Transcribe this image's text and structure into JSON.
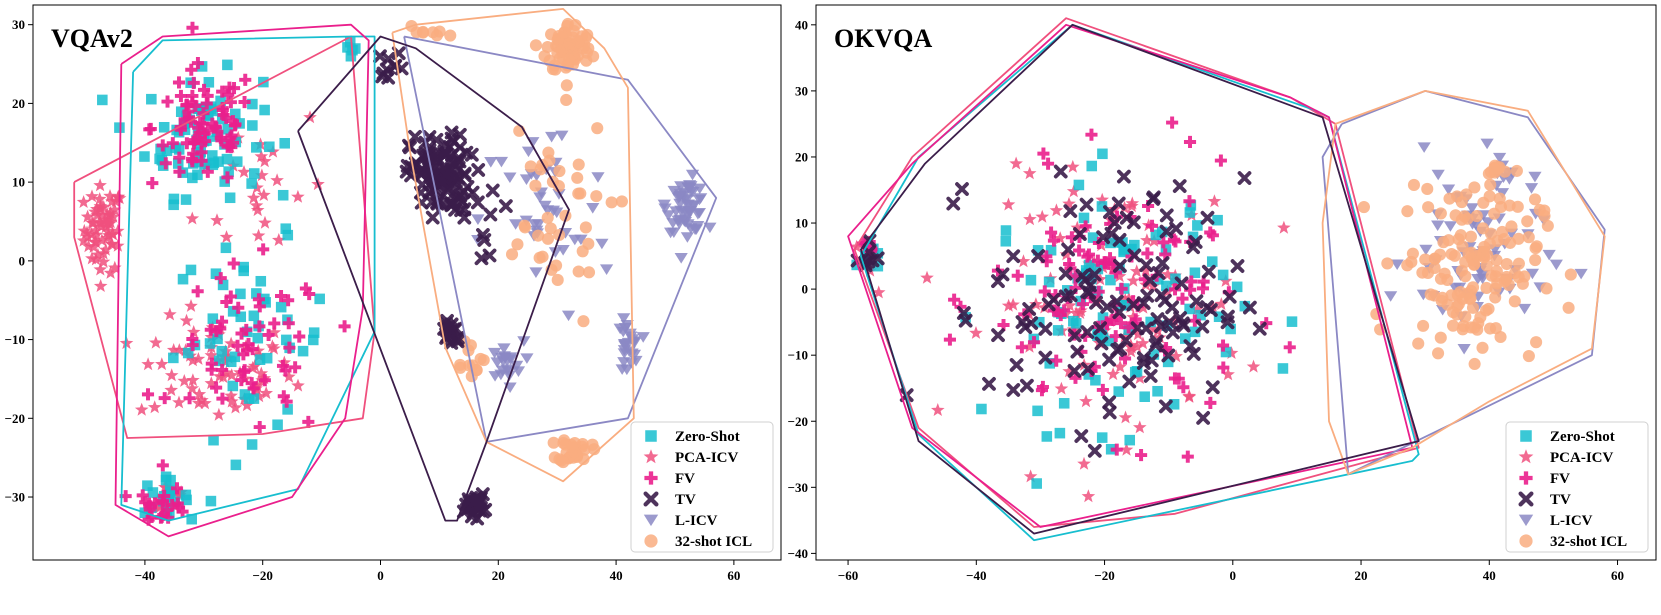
{
  "colors": {
    "zero_shot": "#17becf",
    "pca_icv": "#f0507e",
    "fv": "#ea1f8c",
    "tv": "#3b1d4a",
    "l_icv": "#8b88c4",
    "icl_32": "#f9ad80"
  },
  "legend_entries": [
    {
      "key": "zero_shot",
      "label": "Zero-Shot",
      "marker": "square"
    },
    {
      "key": "pca_icv",
      "label": "PCA-ICV",
      "marker": "star"
    },
    {
      "key": "fv",
      "label": "FV",
      "marker": "plus"
    },
    {
      "key": "tv",
      "label": "TV",
      "marker": "x"
    },
    {
      "key": "l_icv",
      "label": "L-ICV",
      "marker": "triangle-down"
    },
    {
      "key": "icl_32",
      "label": "32-shot ICL",
      "marker": "circle"
    }
  ],
  "chart_data": [
    {
      "type": "scatter",
      "title": "VQAv2",
      "xlabel": "",
      "ylabel": "",
      "xlim": [
        -59,
        68
      ],
      "ylim": [
        -38,
        32.5
      ],
      "xticks": [
        -40,
        -20,
        0,
        20,
        40,
        60
      ],
      "xtick_labels": [
        "−40",
        "−20",
        "0",
        "20",
        "40",
        "60"
      ],
      "yticks": [
        -30,
        -20,
        -10,
        0,
        10,
        20,
        30
      ],
      "ytick_labels": [
        "−30",
        "−20",
        "−10",
        "0",
        "10",
        "20",
        "30"
      ],
      "grid": false,
      "legend_position": "bottom-right",
      "hulls": {
        "zero_shot": [
          [
            -42,
            24
          ],
          [
            -37,
            28
          ],
          [
            -5,
            28.5
          ],
          [
            -1,
            28.5
          ],
          [
            -1,
            -9
          ],
          [
            -14,
            -29
          ],
          [
            -36,
            -33
          ],
          [
            -44,
            -31
          ],
          [
            -42,
            24
          ]
        ],
        "pca_icv": [
          [
            -52,
            10
          ],
          [
            -5,
            28.5
          ],
          [
            -1,
            -9
          ],
          [
            -3,
            -20
          ],
          [
            -20,
            -22
          ],
          [
            -43,
            -22.5
          ],
          [
            -52,
            3
          ],
          [
            -52,
            10
          ]
        ],
        "fv": [
          [
            -44,
            25
          ],
          [
            -37,
            28.5
          ],
          [
            -5,
            30
          ],
          [
            -2,
            28
          ],
          [
            -3,
            -6
          ],
          [
            -6,
            -20
          ],
          [
            -15,
            -30
          ],
          [
            -36,
            -35
          ],
          [
            -45,
            -31
          ],
          [
            -44,
            25
          ]
        ],
        "tv": [
          [
            -14,
            16.5
          ],
          [
            0,
            28.5
          ],
          [
            6,
            27
          ],
          [
            24,
            17
          ],
          [
            32,
            6.5
          ],
          [
            18,
            -23
          ],
          [
            13,
            -33
          ],
          [
            11,
            -33
          ],
          [
            -14,
            16.5
          ]
        ],
        "l_icv": [
          [
            4,
            28.5
          ],
          [
            42,
            23
          ],
          [
            54,
            11
          ],
          [
            57,
            8
          ],
          [
            42,
            -20
          ],
          [
            18,
            -23
          ],
          [
            4,
            28.5
          ]
        ],
        "icl_32": [
          [
            2,
            29
          ],
          [
            6,
            30
          ],
          [
            31,
            32
          ],
          [
            38,
            27
          ],
          [
            42,
            22
          ],
          [
            43,
            -20
          ],
          [
            31,
            -28
          ],
          [
            18,
            -23
          ],
          [
            11,
            -11
          ],
          [
            5,
            14
          ],
          [
            2,
            29
          ]
        ]
      },
      "clusters": {
        "zero_shot": [
          {
            "center": [
              -30,
              16
            ],
            "spread": [
              9,
              7
            ],
            "count": 80
          },
          {
            "center": [
              -22,
              -10
            ],
            "spread": [
              12,
              11
            ],
            "count": 50
          },
          {
            "center": [
              -37,
              -30
            ],
            "spread": [
              4,
              2
            ],
            "count": 18
          },
          {
            "center": [
              -5,
              26
            ],
            "spread": [
              2,
              2
            ],
            "count": 5
          }
        ],
        "pca_icv": [
          {
            "center": [
              -47,
              4
            ],
            "spread": [
              3,
              5
            ],
            "count": 65
          },
          {
            "center": [
              -28,
              -14
            ],
            "spread": [
              12,
              6
            ],
            "count": 70
          },
          {
            "center": [
              -36,
              -30
            ],
            "spread": [
              3,
              2
            ],
            "count": 15
          },
          {
            "center": [
              -20,
              10
            ],
            "spread": [
              10,
              10
            ],
            "count": 25
          }
        ],
        "fv": [
          {
            "center": [
              -30,
              17
            ],
            "spread": [
              8,
              7
            ],
            "count": 75
          },
          {
            "center": [
              -22,
              -12
            ],
            "spread": [
              12,
              10
            ],
            "count": 55
          },
          {
            "center": [
              -37,
              -31
            ],
            "spread": [
              4,
              2
            ],
            "count": 22
          }
        ],
        "tv": [
          {
            "center": [
              10,
              11
            ],
            "spread": [
              4.5,
              4.5
            ],
            "count": 110
          },
          {
            "center": [
              12,
              -9
            ],
            "spread": [
              1.5,
              1.6
            ],
            "count": 22
          },
          {
            "center": [
              16,
              -31
            ],
            "spread": [
              1.5,
              1.2
            ],
            "count": 30
          },
          {
            "center": [
              2,
              25
            ],
            "spread": [
              2,
              1.5
            ],
            "count": 10
          },
          {
            "center": [
              16,
              6
            ],
            "spread": [
              6,
              6
            ],
            "count": 15
          }
        ],
        "l_icv": [
          {
            "center": [
              52,
              7
            ],
            "spread": [
              3,
              3
            ],
            "count": 55
          },
          {
            "center": [
              42,
              -11
            ],
            "spread": [
              1.5,
              3
            ],
            "count": 26
          },
          {
            "center": [
              21,
              -13
            ],
            "spread": [
              3,
              2.5
            ],
            "count": 22
          },
          {
            "center": [
              28,
              5
            ],
            "spread": [
              10,
              12
            ],
            "count": 40
          }
        ],
        "icl_32": [
          {
            "center": [
              32,
              27
            ],
            "spread": [
              3.5,
              3
            ],
            "count": 70
          },
          {
            "center": [
              33,
              -24
            ],
            "spread": [
              2.5,
              1.5
            ],
            "count": 28
          },
          {
            "center": [
              15,
              -12
            ],
            "spread": [
              2.5,
              2.5
            ],
            "count": 12
          },
          {
            "center": [
              28,
              5
            ],
            "spread": [
              10,
              12
            ],
            "count": 40
          },
          {
            "center": [
              8,
              29
            ],
            "spread": [
              4,
              1
            ],
            "count": 8
          }
        ]
      }
    },
    {
      "type": "scatter",
      "title": "OKVQA",
      "xlabel": "",
      "ylabel": "",
      "xlim": [
        -65,
        66
      ],
      "ylim": [
        -41,
        43
      ],
      "xticks": [
        -60,
        -40,
        -20,
        0,
        20,
        40,
        60
      ],
      "xtick_labels": [
        "−60",
        "−40",
        "−20",
        "0",
        "20",
        "40",
        "60"
      ],
      "yticks": [
        -40,
        -30,
        -20,
        -10,
        0,
        10,
        20,
        30,
        40
      ],
      "ytick_labels": [
        "−40",
        "−30",
        "−20",
        "−10",
        "0",
        "10",
        "20",
        "30",
        "40"
      ],
      "grid": false,
      "legend_position": "bottom-right",
      "hulls": {
        "zero_shot": [
          [
            -49,
            20
          ],
          [
            -25,
            40
          ],
          [
            13,
            27
          ],
          [
            15,
            26
          ],
          [
            29,
            -25
          ],
          [
            28,
            -26
          ],
          [
            -31,
            -38
          ],
          [
            -49,
            -22
          ],
          [
            -58,
            5
          ],
          [
            -49,
            20
          ]
        ],
        "pca_icv": [
          [
            -50,
            20
          ],
          [
            -26,
            41
          ],
          [
            9,
            29
          ],
          [
            16,
            25
          ],
          [
            29,
            -24
          ],
          [
            -9,
            -34
          ],
          [
            -31,
            -36
          ],
          [
            -49,
            -21
          ],
          [
            -59,
            6
          ],
          [
            -50,
            20
          ]
        ],
        "fv": [
          [
            -50,
            19
          ],
          [
            -26,
            40
          ],
          [
            9,
            29
          ],
          [
            15,
            26
          ],
          [
            28,
            -24
          ],
          [
            -30,
            -36
          ],
          [
            -50,
            -21
          ],
          [
            -60,
            8
          ],
          [
            -50,
            19
          ]
        ],
        "tv": [
          [
            -48,
            19
          ],
          [
            -25,
            40
          ],
          [
            14,
            26
          ],
          [
            29,
            -23
          ],
          [
            -31,
            -37
          ],
          [
            -49,
            -23
          ],
          [
            -58,
            6
          ],
          [
            -48,
            19
          ]
        ],
        "l_icv": [
          [
            17,
            25
          ],
          [
            30,
            30
          ],
          [
            46,
            26
          ],
          [
            58,
            9
          ],
          [
            56,
            -10
          ],
          [
            35,
            -20
          ],
          [
            18,
            -28
          ],
          [
            14,
            20
          ],
          [
            17,
            25
          ]
        ],
        "icl_32": [
          [
            16,
            25
          ],
          [
            30,
            30
          ],
          [
            46,
            27
          ],
          [
            58,
            8
          ],
          [
            56,
            -9
          ],
          [
            40,
            -17
          ],
          [
            28,
            -24
          ],
          [
            18,
            -28
          ],
          [
            15,
            -20
          ],
          [
            14,
            10
          ],
          [
            16,
            25
          ]
        ]
      },
      "clusters": {
        "zero_shot": [
          {
            "center": [
              -18,
              -2
            ],
            "spread": [
              18,
              17
            ],
            "count": 95
          },
          {
            "center": [
              -57,
              5
            ],
            "spread": [
              1.5,
              2
            ],
            "count": 8
          }
        ],
        "pca_icv": [
          {
            "center": [
              -18,
              -2
            ],
            "spread": [
              18,
              17
            ],
            "count": 110
          },
          {
            "center": [
              -57,
              5
            ],
            "spread": [
              1.5,
              2
            ],
            "count": 8
          }
        ],
        "fv": [
          {
            "center": [
              -18,
              -2
            ],
            "spread": [
              18,
              17
            ],
            "count": 110
          },
          {
            "center": [
              -57,
              6
            ],
            "spread": [
              1.5,
              2
            ],
            "count": 8
          }
        ],
        "tv": [
          {
            "center": [
              -18,
              -2
            ],
            "spread": [
              18,
              17
            ],
            "count": 120
          },
          {
            "center": [
              -57,
              5
            ],
            "spread": [
              1.5,
              2
            ],
            "count": 8
          }
        ],
        "l_icv": [
          {
            "center": [
              38,
              5
            ],
            "spread": [
              10,
              12
            ],
            "count": 70
          },
          {
            "center": [
              42,
              17
            ],
            "spread": [
              1.5,
              2
            ],
            "count": 10
          }
        ],
        "icl_32": [
          {
            "center": [
              37,
              4
            ],
            "spread": [
              10,
              12
            ],
            "count": 150
          },
          {
            "center": [
              41,
              18
            ],
            "spread": [
              1,
              1
            ],
            "count": 10
          }
        ]
      }
    }
  ]
}
